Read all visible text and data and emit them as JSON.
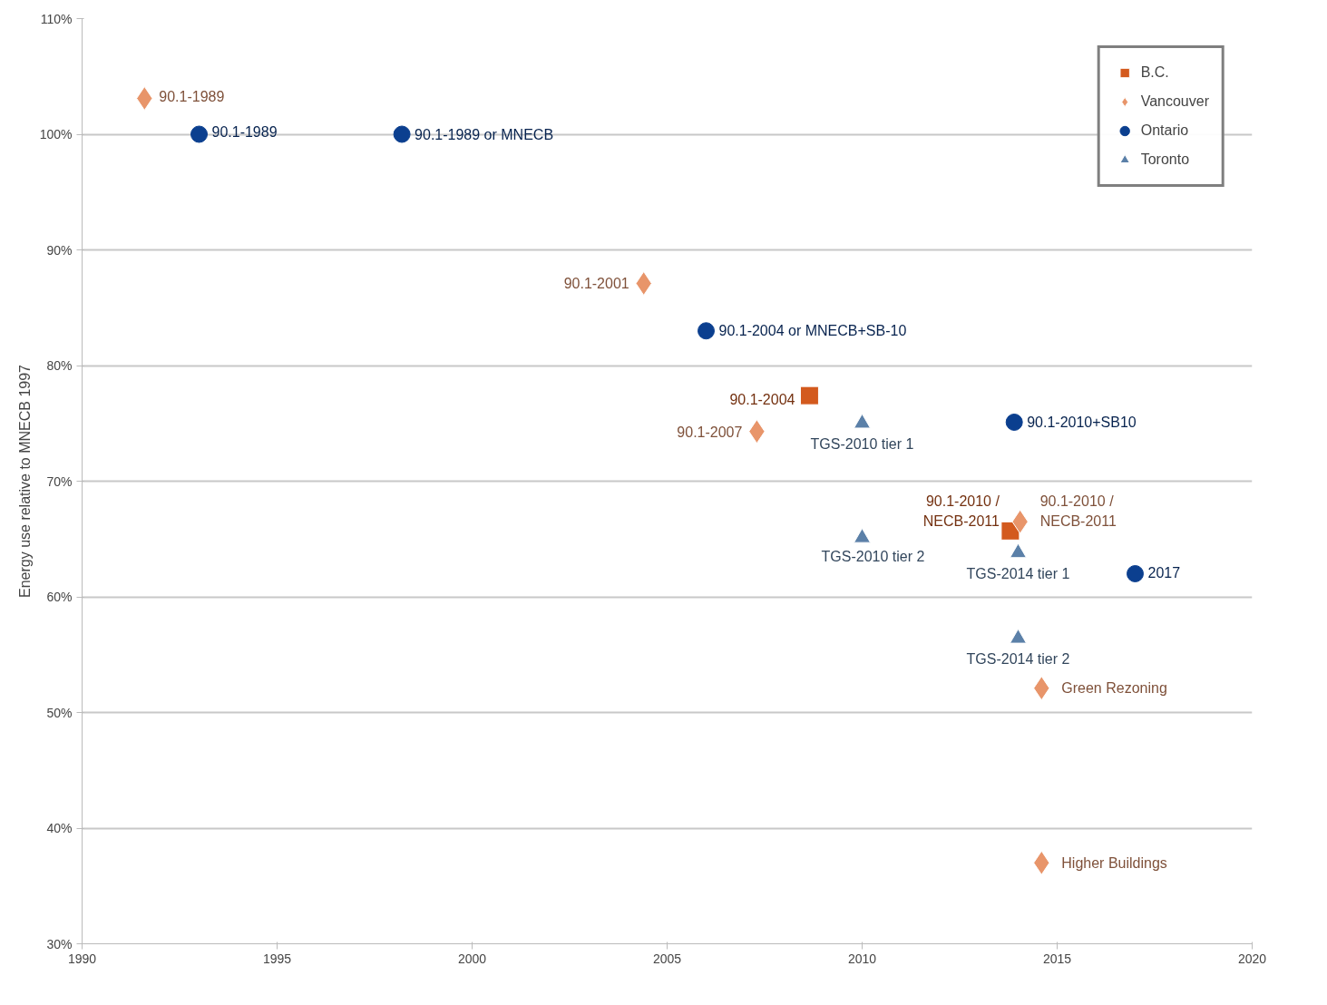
{
  "chart_data": {
    "type": "scatter",
    "ylabel": "Energy use relative to MNECB 1997",
    "xlim": [
      1990,
      2020
    ],
    "xticks": [
      1990,
      1995,
      2000,
      2005,
      2010,
      2015,
      2020
    ],
    "ylim": [
      30,
      110
    ],
    "yticks": [
      {
        "value": 30,
        "label": "30%"
      },
      {
        "value": 40,
        "label": "40%"
      },
      {
        "value": 50,
        "label": "50%"
      },
      {
        "value": 60,
        "label": "60%"
      },
      {
        "value": 70,
        "label": "70%"
      },
      {
        "value": 80,
        "label": "80%"
      },
      {
        "value": 90,
        "label": "90%"
      },
      {
        "value": 100,
        "label": "100%"
      },
      {
        "value": 110,
        "label": "110%"
      }
    ],
    "grid": "y",
    "legend": "top right",
    "series": [
      {
        "name": "B.C.",
        "color": "#d35a1e",
        "marker": "square",
        "x": [
          2008.65,
          2013.8
        ],
        "values": [
          77.4,
          65.7
        ]
      },
      {
        "name": "Vancouver",
        "color": "#e8956a",
        "marker": "diamond",
        "x": [
          1991.6,
          2004.4,
          2007.3,
          2014.05,
          2014.6,
          2014.6
        ],
        "values": [
          103.1,
          87.1,
          74.3,
          66.5,
          52.1,
          37.0
        ]
      },
      {
        "name": "Ontario",
        "color": "#0b3f8f",
        "marker": "circle",
        "x": [
          1993.0,
          1998.2,
          2006.0,
          2013.9,
          2017.0
        ],
        "values": [
          100,
          100,
          83.0,
          75.1,
          62.0
        ]
      },
      {
        "name": "Toronto",
        "color": "#5b80a8",
        "marker": "triangle",
        "x": [
          2010,
          2010,
          2014,
          2014
        ],
        "values": [
          75.0,
          65.1,
          63.8,
          56.4
        ]
      }
    ],
    "annotations": [
      {
        "text": "90.1-1989",
        "x": 1991.6,
        "y": 103.1
      },
      {
        "text": "90.1-1989",
        "x": 1993.0,
        "y": 100
      },
      {
        "text": "90.1-1989 or MNECB",
        "x": 1998.2,
        "y": 100
      },
      {
        "text": "90.1-2001",
        "x": 2004.4,
        "y": 87.1
      },
      {
        "text": "90.1-2004 or MNECB+SB-10",
        "x": 2006.0,
        "y": 83.0
      },
      {
        "text": "90.1-2004",
        "x": 2008.65,
        "y": 77.4
      },
      {
        "text": "90.1-2007",
        "x": 2007.3,
        "y": 74.3
      },
      {
        "text": "TGS-2010 tier 1",
        "x": 2010,
        "y": 75.0
      },
      {
        "text": "90.1-2010+SB10",
        "x": 2013.9,
        "y": 75.1
      },
      {
        "text": "90.1-2010 /\nNECB-2011",
        "x": 2013.8,
        "y": 65.7
      },
      {
        "text": "90.1-2010 /\nNECB-2011",
        "x": 2014.05,
        "y": 66.5
      },
      {
        "text": "TGS-2010 tier 2",
        "x": 2010,
        "y": 65.1
      },
      {
        "text": "TGS-2014 tier 1",
        "x": 2014,
        "y": 63.8
      },
      {
        "text": "2017",
        "x": 2017.0,
        "y": 62.0
      },
      {
        "text": "TGS-2014 tier 2",
        "x": 2014,
        "y": 56.4
      },
      {
        "text": "Green Rezoning",
        "x": 2014.6,
        "y": 52.1
      },
      {
        "text": "Higher Buildings",
        "x": 2014.6,
        "y": 37.0
      }
    ]
  }
}
